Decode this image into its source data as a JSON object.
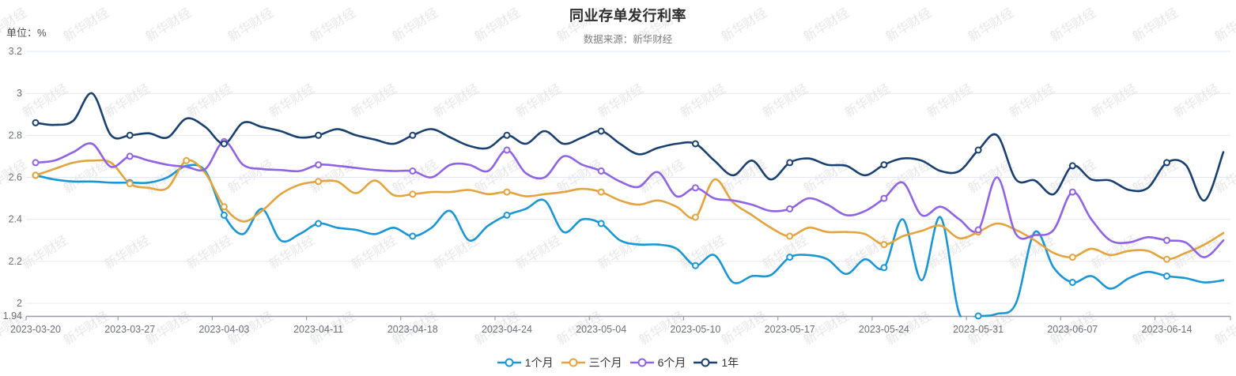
{
  "header": {
    "title": "同业存单发行利率",
    "subtitle": "数据来源：新华财经"
  },
  "watermark": {
    "text": "新华财经"
  },
  "axes": {
    "unit_label": "单位：%",
    "y_ticks": [
      {
        "label": "3.2",
        "value": 3.2
      },
      {
        "label": "3",
        "value": 3.0
      },
      {
        "label": "2.8",
        "value": 2.8
      },
      {
        "label": "2.6",
        "value": 2.6
      },
      {
        "label": "2.4",
        "value": 2.4
      },
      {
        "label": "2.2",
        "value": 2.2
      },
      {
        "label": "2",
        "value": 2.0
      },
      {
        "label": "1.94",
        "value": 1.94
      }
    ],
    "x_labels": [
      {
        "label": "2023-03-20",
        "index": 0
      },
      {
        "label": "2023-03-27",
        "index": 5
      },
      {
        "label": "2023-04-03",
        "index": 10
      },
      {
        "label": "2023-04-11",
        "index": 15
      },
      {
        "label": "2023-04-18",
        "index": 20
      },
      {
        "label": "2023-04-24",
        "index": 25
      },
      {
        "label": "2023-05-04",
        "index": 30
      },
      {
        "label": "2023-05-10",
        "index": 35
      },
      {
        "label": "2023-05-17",
        "index": 40
      },
      {
        "label": "2023-05-24",
        "index": 45
      },
      {
        "label": "2023-05-31",
        "index": 50
      },
      {
        "label": "2023-06-07",
        "index": 55
      },
      {
        "label": "2023-06-14",
        "index": 60
      }
    ]
  },
  "chart_data": {
    "type": "line",
    "smooth": true,
    "title": "同业存单发行利率",
    "subtitle": "数据来源：新华财经",
    "ylabel": "单位：%",
    "ylim": [
      1.94,
      3.2
    ],
    "grid": true,
    "legend_position": "bottom",
    "n_points": 64,
    "marker_interval": 5,
    "marker_last_index": 60,
    "x_labeled_categories": [
      "2023-03-20",
      "2023-03-27",
      "2023-04-03",
      "2023-04-11",
      "2023-04-18",
      "2023-04-24",
      "2023-05-04",
      "2023-05-10",
      "2023-05-17",
      "2023-05-24",
      "2023-05-31",
      "2023-06-07",
      "2023-06-14"
    ],
    "x_label_indices": [
      0,
      5,
      10,
      15,
      20,
      25,
      30,
      35,
      40,
      45,
      50,
      55,
      60
    ],
    "series": [
      {
        "name": "1个月",
        "color": "#1a96d5",
        "extra_marker_indices": [],
        "values": [
          2.61,
          2.59,
          2.58,
          2.58,
          2.575,
          2.575,
          2.575,
          2.6,
          2.655,
          2.63,
          2.42,
          2.33,
          2.45,
          2.3,
          2.33,
          2.38,
          2.36,
          2.35,
          2.33,
          2.36,
          2.32,
          2.36,
          2.44,
          2.3,
          2.37,
          2.42,
          2.45,
          2.49,
          2.34,
          2.4,
          2.38,
          2.3,
          2.28,
          2.28,
          2.26,
          2.18,
          2.23,
          2.1,
          2.13,
          2.135,
          2.22,
          2.23,
          2.21,
          2.14,
          2.21,
          2.17,
          2.4,
          2.11,
          2.41,
          1.95,
          1.94,
          1.95,
          2.0,
          2.34,
          2.17,
          2.1,
          2.13,
          2.07,
          2.12,
          2.15,
          2.13,
          2.12,
          2.1,
          2.11
        ]
      },
      {
        "name": "三个月",
        "color": "#e3a33d",
        "extra_marker_indices": [
          8
        ],
        "values": [
          2.61,
          2.64,
          2.67,
          2.68,
          2.67,
          2.57,
          2.55,
          2.55,
          2.68,
          2.62,
          2.46,
          2.39,
          2.44,
          2.52,
          2.565,
          2.58,
          2.58,
          2.525,
          2.585,
          2.515,
          2.52,
          2.53,
          2.53,
          2.54,
          2.52,
          2.53,
          2.51,
          2.52,
          2.53,
          2.545,
          2.53,
          2.49,
          2.47,
          2.49,
          2.46,
          2.41,
          2.59,
          2.48,
          2.42,
          2.36,
          2.32,
          2.36,
          2.34,
          2.34,
          2.33,
          2.28,
          2.32,
          2.345,
          2.37,
          2.31,
          2.34,
          2.38,
          2.35,
          2.3,
          2.24,
          2.22,
          2.26,
          2.23,
          2.25,
          2.25,
          2.21,
          2.24,
          2.28,
          2.335
        ]
      },
      {
        "name": "6个月",
        "color": "#8f63e3",
        "extra_marker_indices": [],
        "values": [
          2.67,
          2.68,
          2.72,
          2.76,
          2.65,
          2.7,
          2.68,
          2.66,
          2.65,
          2.64,
          2.77,
          2.66,
          2.64,
          2.635,
          2.63,
          2.66,
          2.655,
          2.645,
          2.635,
          2.63,
          2.63,
          2.6,
          2.66,
          2.66,
          2.63,
          2.73,
          2.62,
          2.6,
          2.7,
          2.66,
          2.63,
          2.58,
          2.555,
          2.625,
          2.51,
          2.55,
          2.5,
          2.49,
          2.47,
          2.44,
          2.45,
          2.5,
          2.47,
          2.42,
          2.44,
          2.5,
          2.575,
          2.42,
          2.46,
          2.4,
          2.35,
          2.6,
          2.33,
          2.325,
          2.35,
          2.53,
          2.4,
          2.3,
          2.29,
          2.315,
          2.3,
          2.29,
          2.22,
          2.3
        ]
      },
      {
        "name": "1年",
        "color": "#1a4070",
        "extra_marker_indices": [],
        "values": [
          2.86,
          2.85,
          2.87,
          3.0,
          2.8,
          2.8,
          2.81,
          2.79,
          2.88,
          2.84,
          2.76,
          2.86,
          2.84,
          2.82,
          2.79,
          2.8,
          2.83,
          2.8,
          2.78,
          2.76,
          2.8,
          2.83,
          2.79,
          2.75,
          2.74,
          2.8,
          2.76,
          2.82,
          2.76,
          2.79,
          2.82,
          2.76,
          2.71,
          2.74,
          2.76,
          2.76,
          2.68,
          2.61,
          2.68,
          2.59,
          2.67,
          2.69,
          2.66,
          2.655,
          2.61,
          2.66,
          2.69,
          2.68,
          2.63,
          2.63,
          2.73,
          2.8,
          2.59,
          2.585,
          2.52,
          2.655,
          2.59,
          2.585,
          2.54,
          2.55,
          2.67,
          2.66,
          2.49,
          2.72
        ]
      }
    ]
  }
}
